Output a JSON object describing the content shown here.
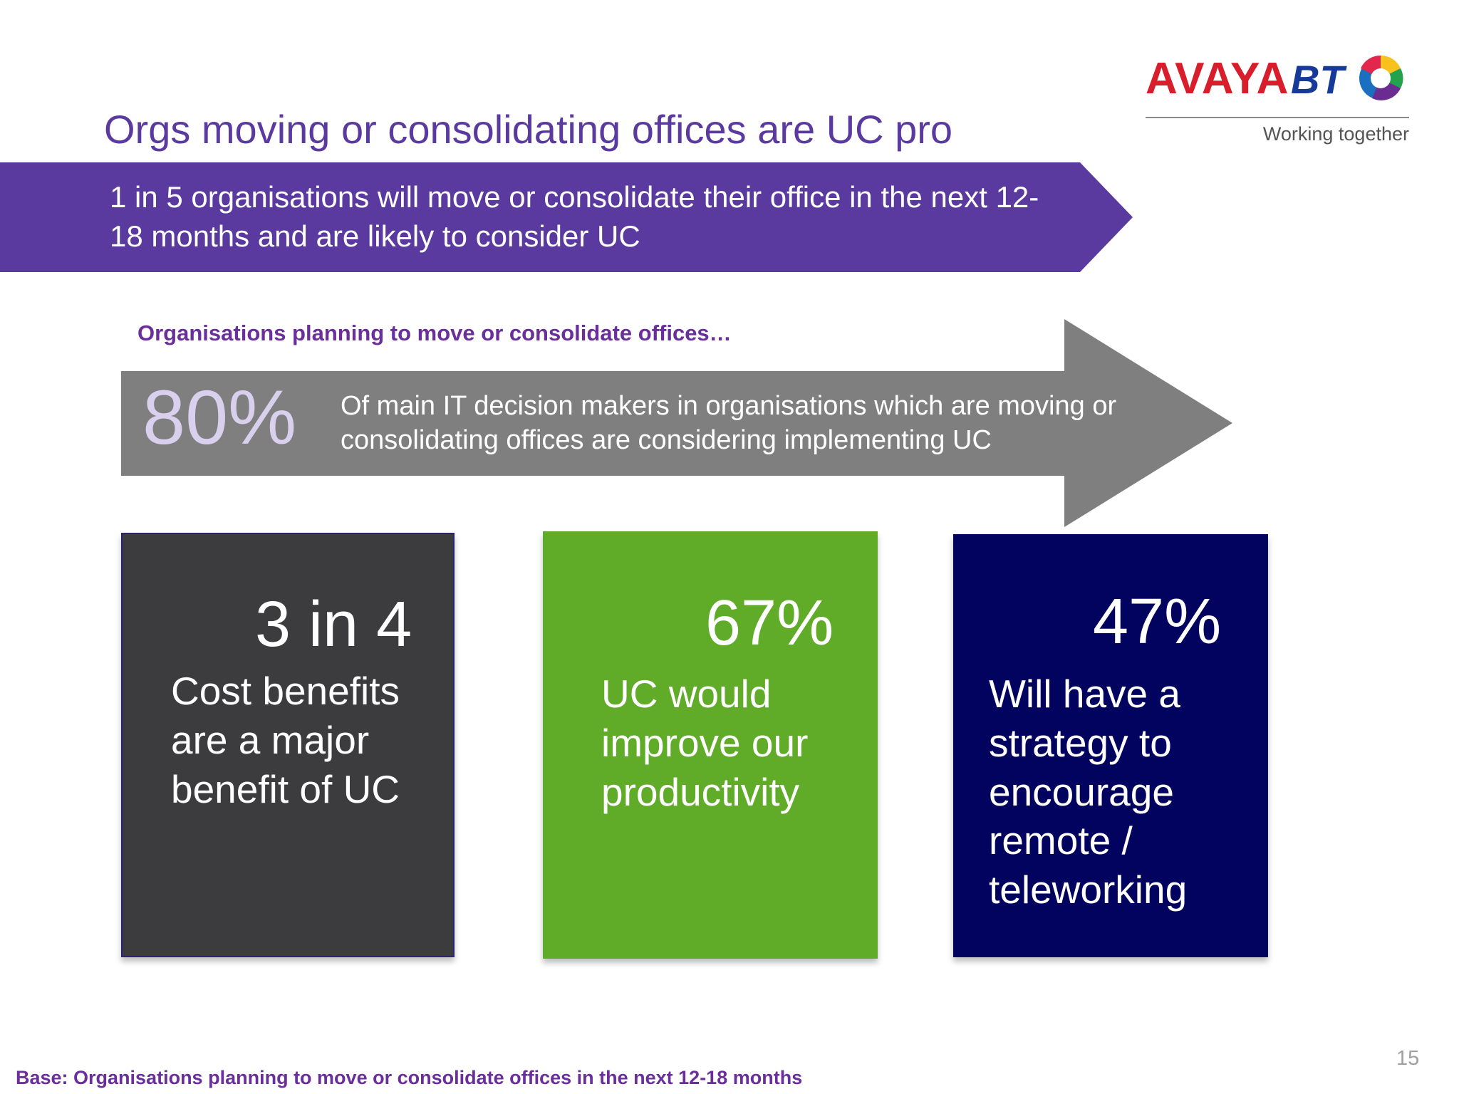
{
  "logos": {
    "avaya": "AVAYA",
    "bt": "BT",
    "tagline": "Working together"
  },
  "title": "Orgs moving or consolidating offices are UC pro",
  "headline": "1 in 5 organisations will move or consolidate their office in the next 12-18 months and are likely to consider UC",
  "section_label": "Organisations planning to move or consolidate offices…",
  "main_stat": {
    "value": "80%",
    "text": "Of main IT decision makers in organisations which are moving or consolidating offices are considering implementing UC"
  },
  "cards": [
    {
      "value": "3 in 4",
      "text": "Cost benefits are a major benefit of UC",
      "color": "#3c3b3e"
    },
    {
      "value": "67%",
      "text": "UC would improve our productivity",
      "color": "#60ab27"
    },
    {
      "value": "47%",
      "text": "Will have a strategy to encourage remote / teleworking",
      "color": "#02025f"
    }
  ],
  "footnote": "Base: Organisations planning to move or consolidate offices in the next 12-18 months",
  "page_number": "15",
  "colors": {
    "accent_purple": "#5b3a9f",
    "banner_purple": "#5a3a9e",
    "arrow_gray": "#7f7f7f"
  }
}
